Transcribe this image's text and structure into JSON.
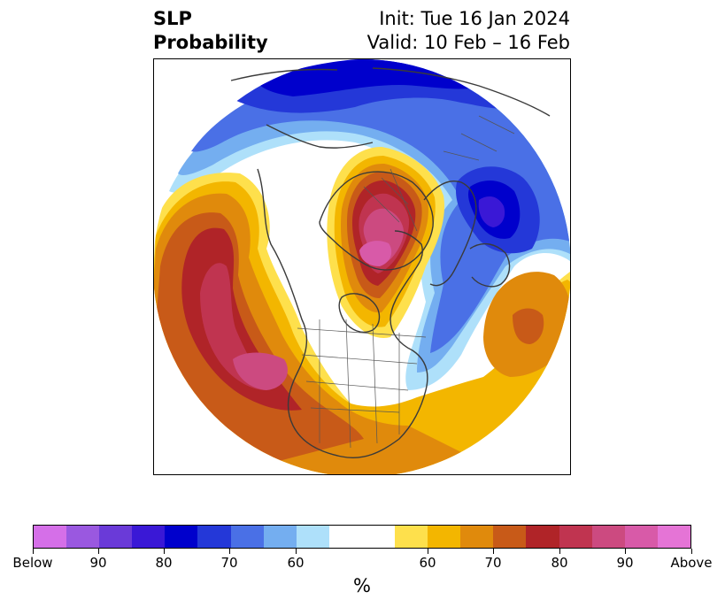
{
  "title": {
    "left_line1": "SLP",
    "left_line2": "Probability",
    "right_line1": "Init: Tue 16 Jan 2024",
    "right_line2": "Valid: 10 Feb – 16 Feb"
  },
  "colorbar": {
    "unit": "%",
    "colors": [
      "#d56fe8",
      "#9a58e0",
      "#6a3ad8",
      "#3a18d6",
      "#0000cc",
      "#2438d8",
      "#4a70e6",
      "#74aef0",
      "#aee0fa",
      "#ffffff",
      "#fee04c",
      "#f3b600",
      "#e08a0c",
      "#c85a18",
      "#b02428",
      "#c03450",
      "#cc4a80",
      "#d85aa8",
      "#e574d6"
    ],
    "tick_labels": [
      "Below",
      "90",
      "80",
      "70",
      "60",
      "60",
      "70",
      "80",
      "90",
      "Above"
    ]
  },
  "map": {
    "projection": "north-polar-stereographic",
    "field": "SLP probability"
  }
}
